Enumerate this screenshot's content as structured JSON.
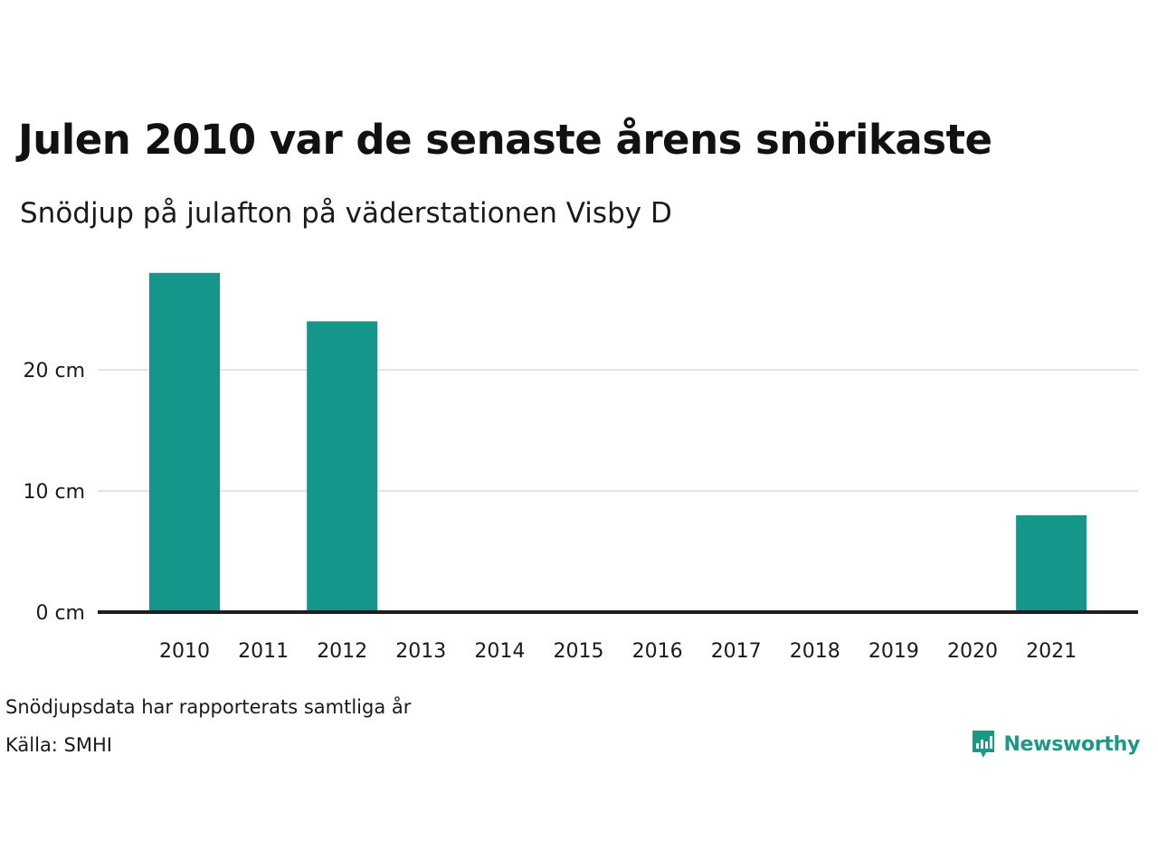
{
  "title": "Julen 2010 var de senaste årens snörikaste",
  "subtitle": "Snödjup på julafton på väderstationen Visby D",
  "footer": {
    "note": "Snödjupsdata har rapporterats samtliga år",
    "source": "Källa: SMHI"
  },
  "logo": {
    "text": "Newsworthy",
    "icon": "bar-chart-speech-bubble-icon"
  },
  "colors": {
    "bar": "#15968a",
    "baseline": "#1f1f1f",
    "grid": "#e3e3e3",
    "logo": "#1a9a86"
  },
  "chart_data": {
    "type": "bar",
    "categories": [
      "2010",
      "2011",
      "2012",
      "2013",
      "2014",
      "2015",
      "2016",
      "2017",
      "2018",
      "2019",
      "2020",
      "2021"
    ],
    "values": [
      28,
      0,
      24,
      0,
      0,
      0,
      0,
      0,
      0,
      0,
      0,
      8
    ],
    "y_ticks": [
      0,
      10,
      20
    ],
    "y_tick_labels": [
      "0 cm",
      "10 cm",
      "20 cm"
    ],
    "ylim": [
      0,
      28
    ],
    "grid": "horizontal",
    "legend": "none"
  }
}
